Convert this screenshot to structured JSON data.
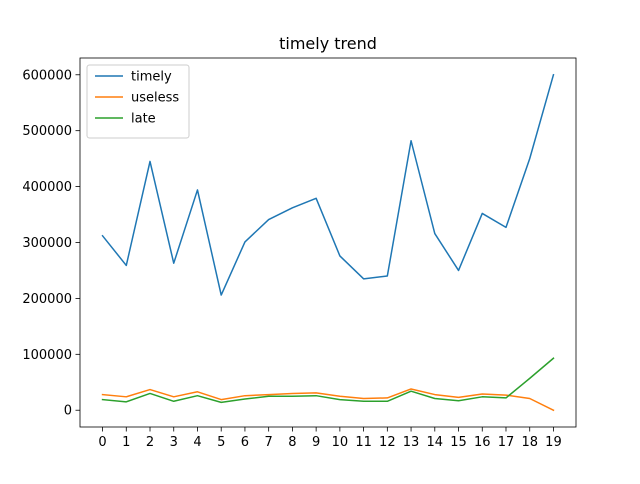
{
  "chart_data": {
    "type": "line",
    "title": "timely trend",
    "xlabel": "",
    "ylabel": "",
    "x": [
      0,
      1,
      2,
      3,
      4,
      5,
      6,
      7,
      8,
      9,
      10,
      11,
      12,
      13,
      14,
      15,
      16,
      17,
      18,
      19
    ],
    "xticks": [
      "0",
      "1",
      "2",
      "3",
      "4",
      "5",
      "6",
      "7",
      "8",
      "9",
      "10",
      "11",
      "12",
      "13",
      "14",
      "15",
      "16",
      "17",
      "18",
      "19"
    ],
    "yticks": [
      0,
      100000,
      200000,
      300000,
      400000,
      500000,
      600000
    ],
    "ytick_labels": [
      "0",
      "100000",
      "200000",
      "300000",
      "400000",
      "500000",
      "600000"
    ],
    "xlim": [
      -0.95,
      19.95
    ],
    "ylim": [
      -30000,
      630000
    ],
    "grid": false,
    "legend_position": "top-left",
    "series": [
      {
        "name": "timely",
        "color": "#1f77b4",
        "values": [
          312000,
          259000,
          445000,
          263000,
          394000,
          206000,
          301000,
          341000,
          362000,
          379000,
          276000,
          235000,
          240000,
          482000,
          316000,
          250000,
          352000,
          327000,
          450000,
          600000
        ]
      },
      {
        "name": "useless",
        "color": "#ff7f0e",
        "values": [
          28000,
          24000,
          37000,
          24000,
          33000,
          19000,
          26000,
          28000,
          30000,
          31000,
          25000,
          21000,
          22000,
          38000,
          28000,
          23000,
          29000,
          27000,
          21000,
          0
        ]
      },
      {
        "name": "late",
        "color": "#2ca02c",
        "values": [
          19000,
          15000,
          30000,
          16000,
          26000,
          14000,
          20000,
          25000,
          25000,
          26000,
          19000,
          16000,
          16000,
          34000,
          21000,
          17000,
          24000,
          22000,
          57000,
          93000
        ]
      }
    ]
  }
}
